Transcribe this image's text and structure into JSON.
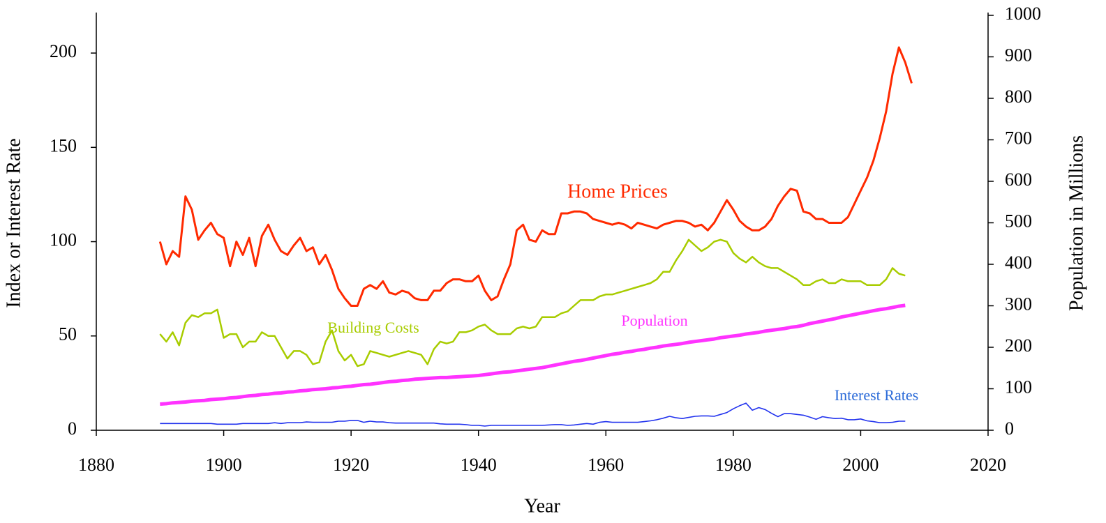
{
  "chart_data": {
    "type": "line",
    "x_label": "Year",
    "y_label": "Index or Interest Rate",
    "y2_label": "Population in Millions",
    "annotations": [
      "Home Prices",
      "Building Costs",
      "Population",
      "Interest Rates"
    ],
    "xlim": [
      1880,
      2020
    ],
    "xticks": [
      1880,
      1900,
      1920,
      1940,
      1960,
      1980,
      2000,
      2020
    ],
    "ylim": [
      0,
      220
    ],
    "yticks": [
      0,
      50,
      100,
      150,
      200
    ],
    "y2lim": [
      0,
      1000
    ],
    "y2ticks": [
      0,
      100,
      200,
      300,
      400,
      500,
      600,
      700,
      800,
      900,
      1000
    ],
    "grid": false,
    "x": [
      1890,
      1891,
      1892,
      1893,
      1894,
      1895,
      1896,
      1897,
      1898,
      1899,
      1900,
      1901,
      1902,
      1903,
      1904,
      1905,
      1906,
      1907,
      1908,
      1909,
      1910,
      1911,
      1912,
      1913,
      1914,
      1915,
      1916,
      1917,
      1918,
      1919,
      1920,
      1921,
      1922,
      1923,
      1924,
      1925,
      1926,
      1927,
      1928,
      1929,
      1930,
      1931,
      1932,
      1933,
      1934,
      1935,
      1936,
      1937,
      1938,
      1939,
      1940,
      1941,
      1942,
      1943,
      1944,
      1945,
      1946,
      1947,
      1948,
      1949,
      1950,
      1951,
      1952,
      1953,
      1954,
      1955,
      1956,
      1957,
      1958,
      1959,
      1960,
      1961,
      1962,
      1963,
      1964,
      1965,
      1966,
      1967,
      1968,
      1969,
      1970,
      1971,
      1972,
      1973,
      1974,
      1975,
      1976,
      1977,
      1978,
      1979,
      1980,
      1981,
      1982,
      1983,
      1984,
      1985,
      1986,
      1987,
      1988,
      1989,
      1990,
      1991,
      1992,
      1993,
      1994,
      1995,
      1996,
      1997,
      1998,
      1999,
      2000,
      2001,
      2002,
      2003,
      2004,
      2005,
      2006,
      2007,
      2008
    ],
    "series": [
      {
        "name": "Home Prices",
        "color": "#ff2a00",
        "width": 3,
        "values": [
          100,
          88,
          95,
          92,
          124,
          117,
          101,
          106,
          110,
          104,
          102,
          87,
          100,
          93,
          102,
          87,
          103,
          109,
          101,
          95,
          93,
          98,
          102,
          95,
          97,
          88,
          93,
          85,
          75,
          70,
          66,
          66,
          75,
          77,
          75,
          79,
          73,
          72,
          74,
          73,
          70,
          69,
          69,
          74,
          74,
          78,
          80,
          80,
          79,
          79,
          82,
          74,
          69,
          71,
          80,
          88,
          106,
          109,
          101,
          100,
          106,
          104,
          104,
          115,
          115,
          116,
          116,
          115,
          112,
          111,
          110,
          109,
          110,
          109,
          107,
          110,
          109,
          108,
          107,
          109,
          110,
          111,
          111,
          110,
          108,
          109,
          106,
          110,
          116,
          122,
          117,
          111,
          108,
          106,
          106,
          108,
          112,
          119,
          124,
          128,
          127,
          116,
          115,
          112,
          112,
          110,
          110,
          110,
          113,
          120,
          127,
          134,
          143,
          155,
          169,
          189,
          203,
          195,
          184
        ]
      },
      {
        "name": "Building Costs",
        "color": "#a8cc00",
        "width": 2.5,
        "values": [
          51,
          47,
          52,
          45,
          57,
          61,
          60,
          62,
          62,
          64,
          49,
          51,
          51,
          44,
          47,
          47,
          52,
          50,
          50,
          44,
          38,
          42,
          42,
          40,
          35,
          36,
          47,
          53,
          42,
          37,
          40,
          34,
          35,
          42,
          41,
          40,
          39,
          40,
          41,
          42,
          41,
          40,
          35,
          43,
          47,
          46,
          47,
          52,
          52,
          53,
          55,
          56,
          53,
          51,
          51,
          51,
          54,
          55,
          54,
          55,
          60,
          60,
          60,
          62,
          63,
          66,
          69,
          69,
          69,
          71,
          72,
          72,
          73,
          74,
          75,
          76,
          77,
          78,
          80,
          84,
          84,
          90,
          95,
          101,
          98,
          95,
          97,
          100,
          101,
          100,
          94,
          91,
          89,
          92,
          89,
          87,
          86,
          86,
          84,
          82,
          80,
          77,
          77,
          79,
          80,
          78,
          78,
          80,
          79,
          79,
          79,
          77,
          77,
          77,
          80,
          86,
          83,
          82,
          null
        ]
      },
      {
        "name": "Population",
        "color": "#ff33ff",
        "width": 5,
        "axis": "y2",
        "values": [
          63,
          64,
          66,
          67,
          68,
          70,
          71,
          72,
          74,
          75,
          76,
          78,
          79,
          81,
          83,
          84,
          86,
          87,
          89,
          90,
          92,
          93,
          95,
          96,
          98,
          99,
          100,
          102,
          103,
          105,
          106,
          108,
          110,
          111,
          113,
          115,
          117,
          118,
          120,
          121,
          123,
          124,
          125,
          126,
          127,
          127,
          128,
          129,
          130,
          131,
          132,
          134,
          136,
          138,
          140,
          141,
          143,
          145,
          147,
          149,
          151,
          154,
          157,
          160,
          163,
          166,
          168,
          171,
          174,
          177,
          180,
          183,
          185,
          188,
          190,
          193,
          195,
          198,
          200,
          203,
          205,
          207,
          209,
          212,
          214,
          216,
          218,
          220,
          223,
          225,
          227,
          229,
          232,
          234,
          236,
          239,
          241,
          243,
          245,
          248,
          250,
          253,
          257,
          260,
          263,
          266,
          269,
          273,
          276,
          279,
          282,
          285,
          288,
          291,
          293,
          296,
          299,
          301,
          null
        ]
      },
      {
        "name": "Interest Rates",
        "color": "#2233ee",
        "width": 1.6,
        "values": [
          3.6,
          3.6,
          3.6,
          3.6,
          3.6,
          3.6,
          3.6,
          3.6,
          3.6,
          3.2,
          3.2,
          3.2,
          3.2,
          3.6,
          3.6,
          3.6,
          3.6,
          3.6,
          4.0,
          3.6,
          4.0,
          4.0,
          4.0,
          4.4,
          4.2,
          4.2,
          4.2,
          4.2,
          4.8,
          4.8,
          5.2,
          5.2,
          4.2,
          4.8,
          4.4,
          4.4,
          4.0,
          3.8,
          3.8,
          3.8,
          3.8,
          3.8,
          3.8,
          3.8,
          3.4,
          3.2,
          3.2,
          3.2,
          3.0,
          2.6,
          2.6,
          2.2,
          2.6,
          2.6,
          2.6,
          2.6,
          2.6,
          2.6,
          2.6,
          2.6,
          2.6,
          2.8,
          3.0,
          3.0,
          2.6,
          2.8,
          3.2,
          3.6,
          3.2,
          4.2,
          4.6,
          4.2,
          4.2,
          4.2,
          4.2,
          4.2,
          4.6,
          5.0,
          5.6,
          6.4,
          7.4,
          6.6,
          6.2,
          6.8,
          7.4,
          7.6,
          7.6,
          7.4,
          8.4,
          9.4,
          11.4,
          13.0,
          14.4,
          10.6,
          12.0,
          11.0,
          9.0,
          7.2,
          8.8,
          8.8,
          8.4,
          8.0,
          7.0,
          5.8,
          7.2,
          6.6,
          6.2,
          6.4,
          5.6,
          5.6,
          6.0,
          5.0,
          4.6,
          4.0,
          4.0,
          4.2,
          4.8,
          4.8,
          null
        ]
      }
    ]
  }
}
